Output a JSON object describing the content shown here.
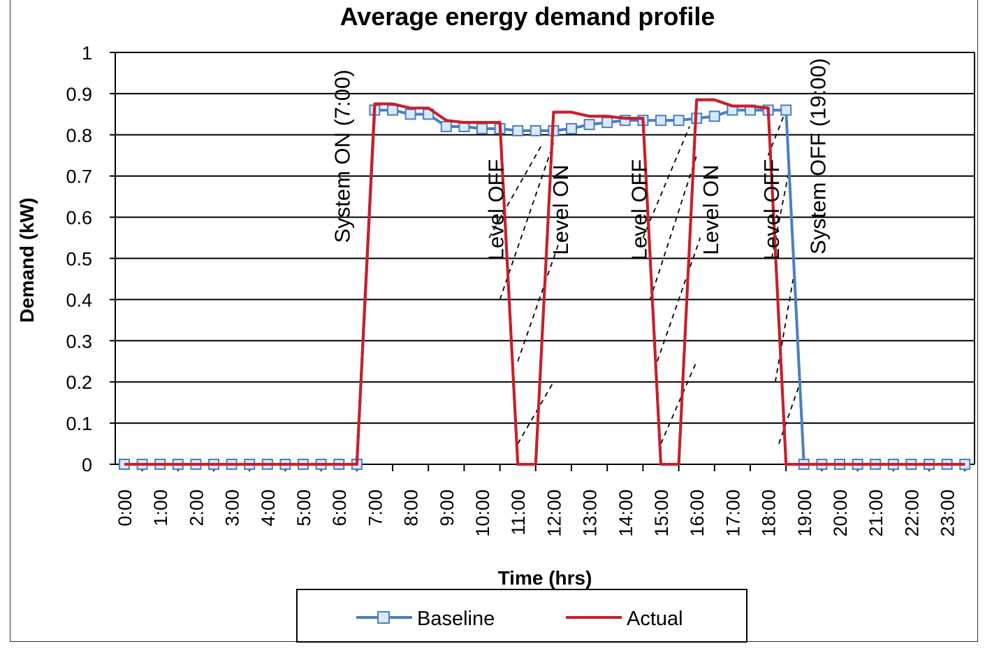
{
  "chart_data": {
    "type": "line",
    "title": "Average energy demand profile",
    "xlabel": "Time (hrs)",
    "ylabel": "Demand (kW)",
    "ylim": [
      0,
      1
    ],
    "yticks": [
      "0",
      "0.1",
      "0.2",
      "0.3",
      "0.4",
      "0.5",
      "0.6",
      "0.7",
      "0.8",
      "0.9",
      "1"
    ],
    "xticks": [
      "0:00",
      "1:00",
      "2:00",
      "3:00",
      "4:00",
      "5:00",
      "6:00",
      "7:00",
      "8:00",
      "9:00",
      "10:00",
      "11:00",
      "12:00",
      "13:00",
      "14:00",
      "15:00",
      "16:00",
      "17:00",
      "18:00",
      "19:00",
      "20:00",
      "21:00",
      "22:00",
      "23:00"
    ],
    "grid": "horizontal",
    "legend_position": "bottom",
    "series": [
      {
        "name": "Baseline",
        "color": "#4a7fc1",
        "marker": "square",
        "points": [
          [
            0,
            0
          ],
          [
            0.5,
            0
          ],
          [
            1,
            0
          ],
          [
            1.5,
            0
          ],
          [
            2,
            0
          ],
          [
            2.5,
            0
          ],
          [
            3,
            0
          ],
          [
            3.5,
            0
          ],
          [
            4,
            0
          ],
          [
            4.5,
            0
          ],
          [
            5,
            0
          ],
          [
            5.5,
            0
          ],
          [
            6,
            0
          ],
          [
            6.5,
            0
          ],
          [
            7,
            0.86
          ],
          [
            7.5,
            0.86
          ],
          [
            8,
            0.85
          ],
          [
            8.5,
            0.85
          ],
          [
            9,
            0.82
          ],
          [
            9.5,
            0.82
          ],
          [
            10,
            0.815
          ],
          [
            10.5,
            0.815
          ],
          [
            11,
            0.81
          ],
          [
            11.5,
            0.81
          ],
          [
            12,
            0.81
          ],
          [
            12.5,
            0.815
          ],
          [
            13,
            0.825
          ],
          [
            13.5,
            0.83
          ],
          [
            14,
            0.835
          ],
          [
            14.5,
            0.835
          ],
          [
            15,
            0.835
          ],
          [
            15.5,
            0.835
          ],
          [
            16,
            0.84
          ],
          [
            16.5,
            0.845
          ],
          [
            17,
            0.86
          ],
          [
            17.5,
            0.86
          ],
          [
            18,
            0.86
          ],
          [
            18.5,
            0.86
          ],
          [
            19,
            0
          ],
          [
            19.5,
            0
          ],
          [
            20,
            0
          ],
          [
            20.5,
            0
          ],
          [
            21,
            0
          ],
          [
            21.5,
            0
          ],
          [
            22,
            0
          ],
          [
            22.5,
            0
          ],
          [
            23,
            0
          ],
          [
            23.5,
            0
          ]
        ]
      },
      {
        "name": "Actual",
        "color": "#c8202a",
        "marker": "none",
        "points": [
          [
            0,
            0
          ],
          [
            6.5,
            0
          ],
          [
            7,
            0.875
          ],
          [
            7.5,
            0.875
          ],
          [
            8,
            0.865
          ],
          [
            8.5,
            0.865
          ],
          [
            9,
            0.835
          ],
          [
            9.5,
            0.83
          ],
          [
            10,
            0.83
          ],
          [
            10.5,
            0.83
          ],
          [
            11,
            0
          ],
          [
            11.5,
            0
          ],
          [
            12,
            0.855
          ],
          [
            12.5,
            0.855
          ],
          [
            13,
            0.845
          ],
          [
            13.5,
            0.845
          ],
          [
            14,
            0.84
          ],
          [
            14.5,
            0.84
          ],
          [
            15,
            0
          ],
          [
            15.5,
            0
          ],
          [
            16,
            0.885
          ],
          [
            16.5,
            0.885
          ],
          [
            17,
            0.87
          ],
          [
            17.5,
            0.87
          ],
          [
            18,
            0.865
          ],
          [
            18.5,
            0
          ],
          [
            23.5,
            0
          ]
        ]
      }
    ],
    "annotations": [
      {
        "text": "System ON (7:00)",
        "x": 6.3,
        "y": 0.68
      },
      {
        "text": "Level OFF",
        "x": 10.6,
        "y": 0.55
      },
      {
        "text": "Level ON",
        "x": 12.4,
        "y": 0.55
      },
      {
        "text": "Level OFF",
        "x": 14.6,
        "y": 0.55
      },
      {
        "text": "Level ON",
        "x": 16.6,
        "y": 0.55
      },
      {
        "text": "Level OFF",
        "x": 18.3,
        "y": 0.55
      },
      {
        "text": "System OFF (19:00)",
        "x": 19.6,
        "y": 0.68
      }
    ],
    "dashed_markers": [
      {
        "x0": 10.2,
        "x1": 11.7,
        "y0": 0.55,
        "y1": 0.78
      },
      {
        "x0": 10.5,
        "x1": 12.0,
        "y0": 0.4,
        "y1": 0.78
      },
      {
        "x0": 11.0,
        "x1": 12.2,
        "y0": 0.25,
        "y1": 0.55
      },
      {
        "x0": 11.0,
        "x1": 12.0,
        "y0": 0.05,
        "y1": 0.2
      },
      {
        "x0": 14.5,
        "x1": 15.8,
        "y0": 0.55,
        "y1": 0.82
      },
      {
        "x0": 14.7,
        "x1": 16.0,
        "y0": 0.4,
        "y1": 0.75
      },
      {
        "x0": 14.9,
        "x1": 16.1,
        "y0": 0.25,
        "y1": 0.55
      },
      {
        "x0": 15.0,
        "x1": 16.0,
        "y0": 0.05,
        "y1": 0.25
      },
      {
        "x0": 18.0,
        "x1": 18.5,
        "y0": 0.75,
        "y1": 0.86
      },
      {
        "x0": 18.1,
        "x1": 18.6,
        "y0": 0.5,
        "y1": 0.72
      },
      {
        "x0": 18.2,
        "x1": 18.7,
        "y0": 0.2,
        "y1": 0.45
      },
      {
        "x0": 18.3,
        "x1": 18.9,
        "y0": 0.05,
        "y1": 0.2
      }
    ]
  }
}
